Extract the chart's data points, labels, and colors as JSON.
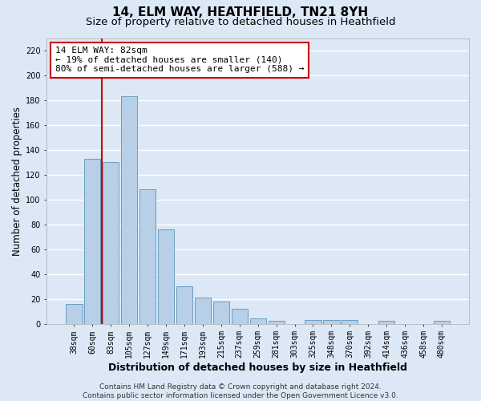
{
  "title": "14, ELM WAY, HEATHFIELD, TN21 8YH",
  "subtitle": "Size of property relative to detached houses in Heathfield",
  "xlabel": "Distribution of detached houses by size in Heathfield",
  "ylabel": "Number of detached properties",
  "categories": [
    "38sqm",
    "60sqm",
    "83sqm",
    "105sqm",
    "127sqm",
    "149sqm",
    "171sqm",
    "193sqm",
    "215sqm",
    "237sqm",
    "259sqm",
    "281sqm",
    "303sqm",
    "325sqm",
    "348sqm",
    "370sqm",
    "392sqm",
    "414sqm",
    "436sqm",
    "458sqm",
    "480sqm"
  ],
  "values": [
    16,
    133,
    130,
    183,
    108,
    76,
    30,
    21,
    18,
    12,
    4,
    2,
    0,
    3,
    3,
    3,
    0,
    2,
    0,
    0,
    2
  ],
  "bar_color": "#b8cfe8",
  "bar_edge_color": "#6b9dc2",
  "ylim": [
    0,
    230
  ],
  "yticks": [
    0,
    20,
    40,
    60,
    80,
    100,
    120,
    140,
    160,
    180,
    200,
    220
  ],
  "vline_x": 1.5,
  "vline_color": "#cc0000",
  "annotation_title": "14 ELM WAY: 82sqm",
  "annotation_line1": "← 19% of detached houses are smaller (140)",
  "annotation_line2": "80% of semi-detached houses are larger (588) →",
  "annotation_box_facecolor": "#ffffff",
  "annotation_box_edgecolor": "#cc0000",
  "footer_line1": "Contains HM Land Registry data © Crown copyright and database right 2024.",
  "footer_line2": "Contains public sector information licensed under the Open Government Licence v3.0.",
  "background_color": "#dce8f5",
  "plot_bg_color": "#dce8f5",
  "grid_color": "#ffffff",
  "title_fontsize": 11,
  "subtitle_fontsize": 9.5,
  "ylabel_fontsize": 8.5,
  "xlabel_fontsize": 9,
  "tick_fontsize": 7,
  "annotation_fontsize": 8,
  "footer_fontsize": 6.5
}
